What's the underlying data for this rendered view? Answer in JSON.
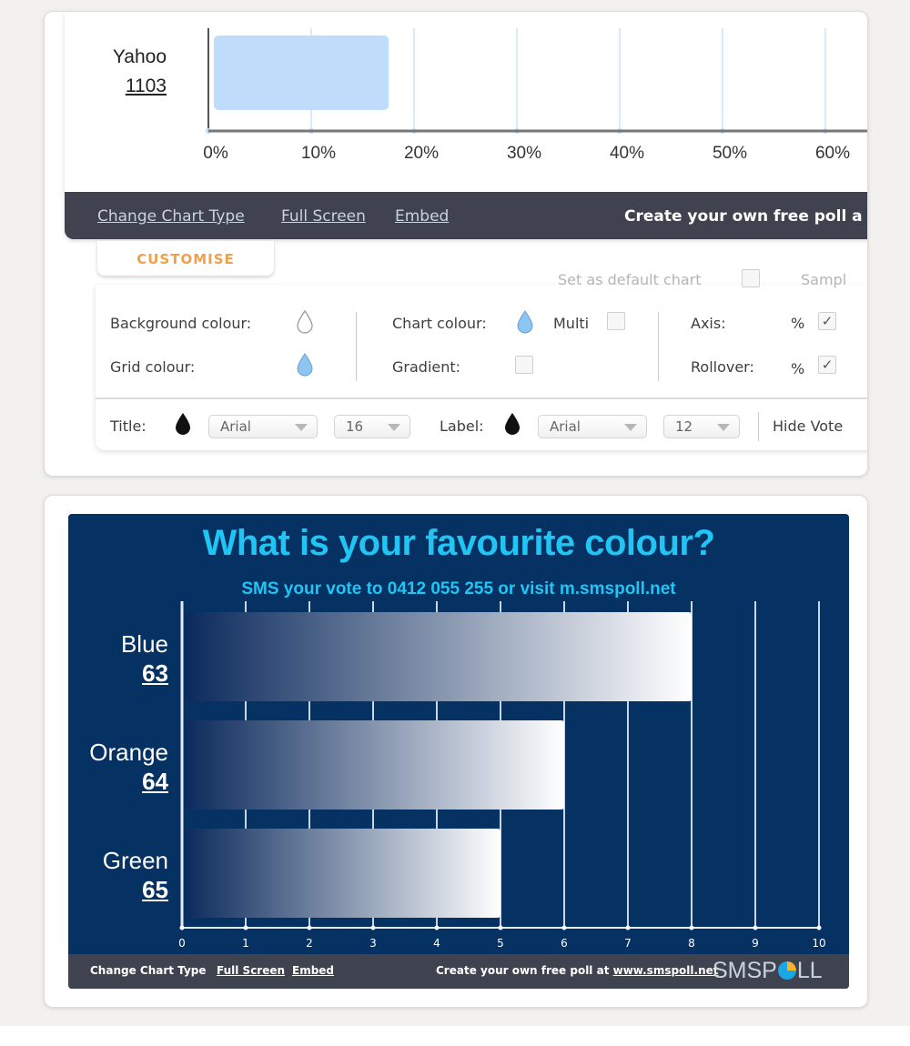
{
  "top_panel": {
    "chart": {
      "category": "Yahoo",
      "value": "1103",
      "ticks": [
        "0%",
        "10%",
        "20%",
        "30%",
        "40%",
        "50%",
        "60%"
      ],
      "bar_percent": 17,
      "bar_color": "#bfdcfb"
    },
    "footer": {
      "change_chart_type": "Change Chart Type",
      "full_screen": "Full Screen",
      "embed": "Embed",
      "create_text": "Create your own free poll a"
    },
    "customise": {
      "tab_label": "CUSTOMISE",
      "default_chart_label": "Set as default chart",
      "sample_label": "Sampl",
      "background_colour_label": "Background colour:",
      "grid_colour_label": "Grid colour:",
      "chart_colour_label": "Chart colour:",
      "multi_label": "Multi",
      "gradient_label": "Gradient:",
      "axis_label": "Axis:",
      "axis_unit": "%",
      "rollover_label": "Rollover:",
      "rollover_unit": "%",
      "title_label": "Title:",
      "title_font": "Arial",
      "title_size": "16",
      "label_label": "Label:",
      "label_font": "Arial",
      "label_size": "12",
      "hide_votes_label": "Hide Vote"
    }
  },
  "bottom_panel": {
    "footer": {
      "change_chart_type": "Change Chart Type",
      "full_screen": "Full Screen",
      "embed": "Embed",
      "create_prefix": "Create your own free poll at ",
      "create_link": "www.smspoll.net",
      "logo_left": "SMSP",
      "logo_right": "LL"
    }
  },
  "chart_data": {
    "type": "bar",
    "orientation": "horizontal",
    "title": "What is your favourite colour?",
    "subtitle": "SMS your vote to 0412 055 255 or visit m.smspoll.net",
    "categories": [
      "Blue",
      "Orange",
      "Green"
    ],
    "labels": [
      "63",
      "64",
      "65"
    ],
    "values": [
      8,
      6,
      5
    ],
    "xlim": [
      0,
      10
    ],
    "xticks": [
      "0",
      "1",
      "2",
      "3",
      "4",
      "5",
      "6",
      "7",
      "8",
      "9",
      "10"
    ],
    "grid": true,
    "background_color": "#053163",
    "title_color": "#20c5f4"
  }
}
